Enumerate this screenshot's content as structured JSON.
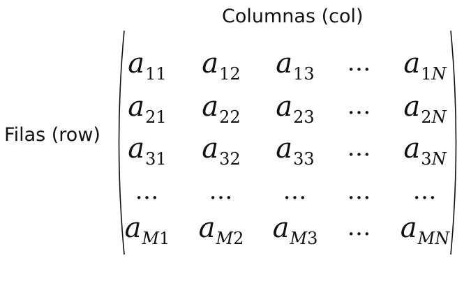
{
  "labels": {
    "columns": "Columnas (col)",
    "rows": "Filas (row)"
  },
  "matrix": {
    "symbol": "a",
    "ellipsis": "…",
    "rows": [
      [
        {
          "sub": "11"
        },
        {
          "sub": "12"
        },
        {
          "sub": "13"
        },
        {
          "dots": true
        },
        {
          "sub": "1",
          "sub_italic": "N"
        }
      ],
      [
        {
          "sub": "21"
        },
        {
          "sub": "22"
        },
        {
          "sub": "23"
        },
        {
          "dots": true
        },
        {
          "sub": "2",
          "sub_italic": "N"
        }
      ],
      [
        {
          "sub": "31"
        },
        {
          "sub": "32"
        },
        {
          "sub": "33"
        },
        {
          "dots": true
        },
        {
          "sub": "3",
          "sub_italic": "N"
        }
      ],
      [
        {
          "dots": true
        },
        {
          "dots": true
        },
        {
          "dots": true
        },
        {
          "dots": true
        },
        {
          "dots": true
        }
      ],
      [
        {
          "sub_italic": "M",
          "sub": "1"
        },
        {
          "sub_italic": "M",
          "sub": "2"
        },
        {
          "sub_italic": "M",
          "sub": "3"
        },
        {
          "dots": true
        },
        {
          "sub_italic": "MN"
        }
      ]
    ]
  }
}
